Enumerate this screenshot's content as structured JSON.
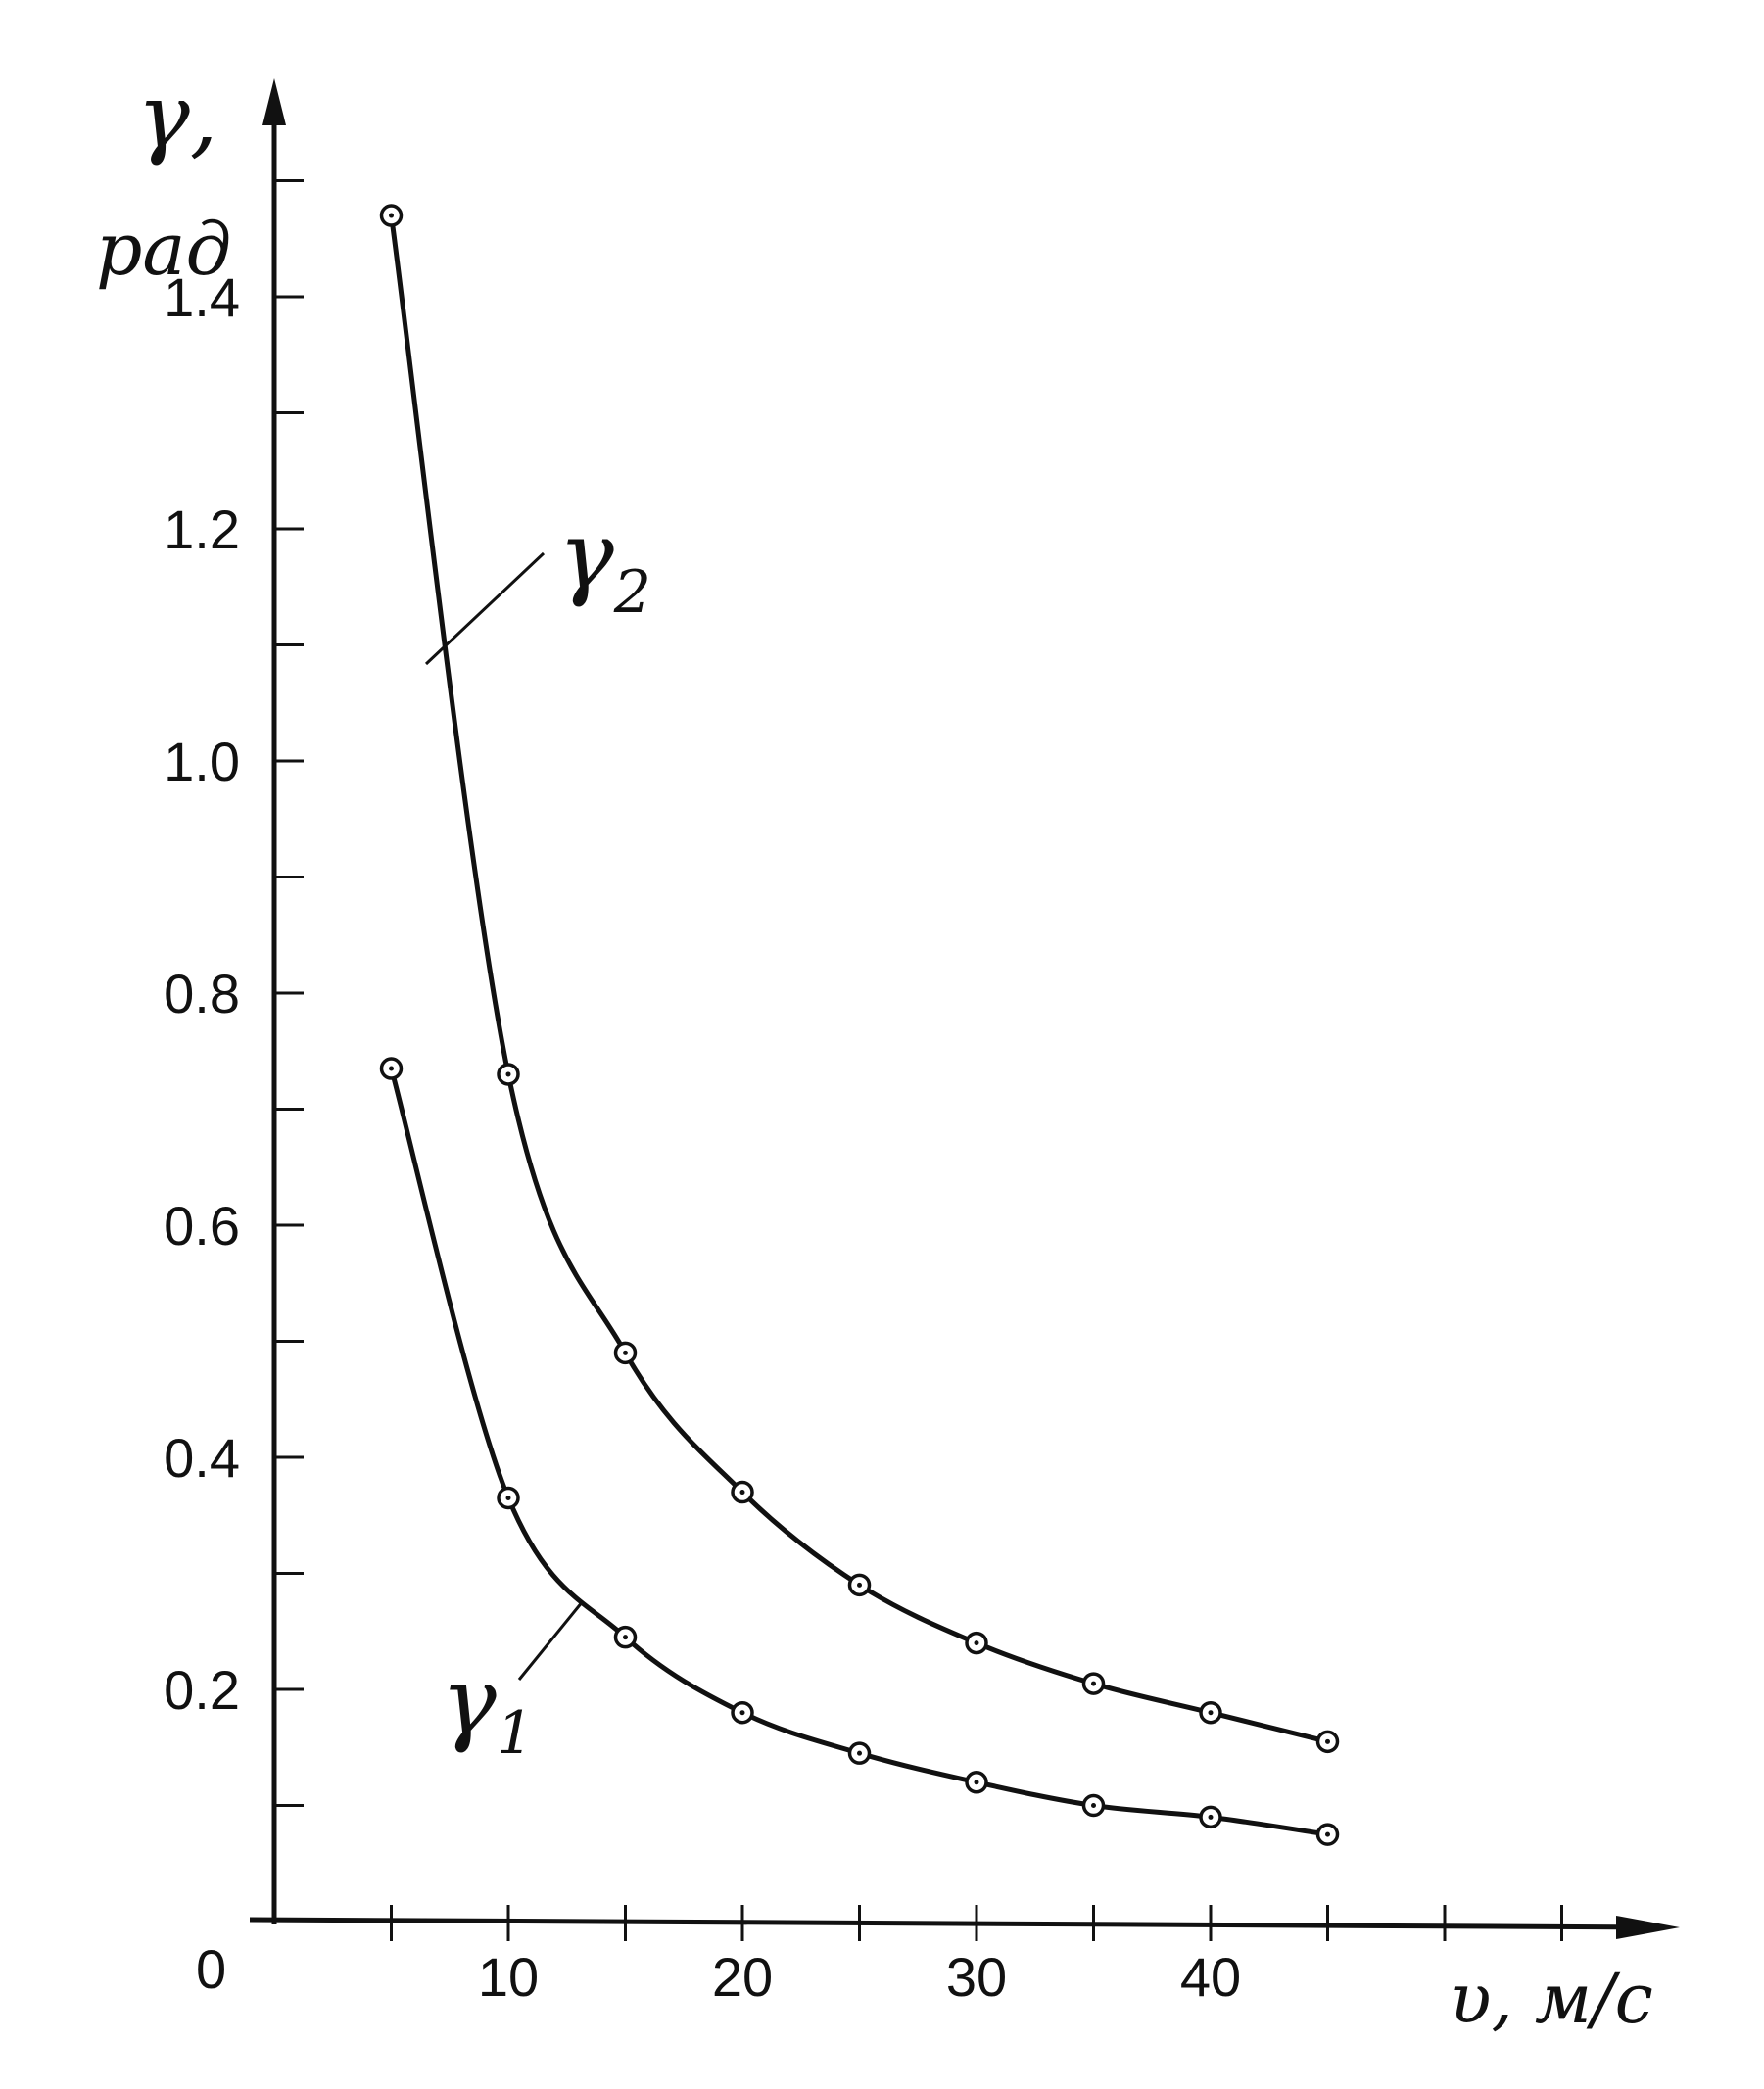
{
  "chart_data": {
    "type": "line",
    "x_ticks": [
      "10",
      "20",
      "30",
      "40"
    ],
    "y_ticks": [
      "0.2",
      "0.4",
      "0.6",
      "0.8",
      "1.0",
      "1.2",
      "1.4"
    ],
    "origin_label": "0",
    "xlabel": "υ, м/с",
    "ylabel_symbol": "γ,",
    "ylabel_unit": "рад",
    "xlim": [
      0,
      50
    ],
    "ylim": [
      0,
      1.6
    ],
    "grid": false,
    "series": [
      {
        "name": "γ2",
        "label_symbol": "γ",
        "label_sub": "2",
        "x": [
          5,
          10,
          15,
          20,
          25,
          30,
          35,
          40,
          45
        ],
        "values": [
          1.47,
          0.73,
          0.49,
          0.37,
          0.29,
          0.24,
          0.205,
          0.18,
          0.155
        ]
      },
      {
        "name": "γ1",
        "label_symbol": "γ",
        "label_sub": "1",
        "x": [
          5,
          10,
          15,
          20,
          25,
          30,
          35,
          40,
          45
        ],
        "values": [
          0.735,
          0.365,
          0.245,
          0.18,
          0.145,
          0.12,
          0.1,
          0.09,
          0.075
        ]
      }
    ]
  }
}
